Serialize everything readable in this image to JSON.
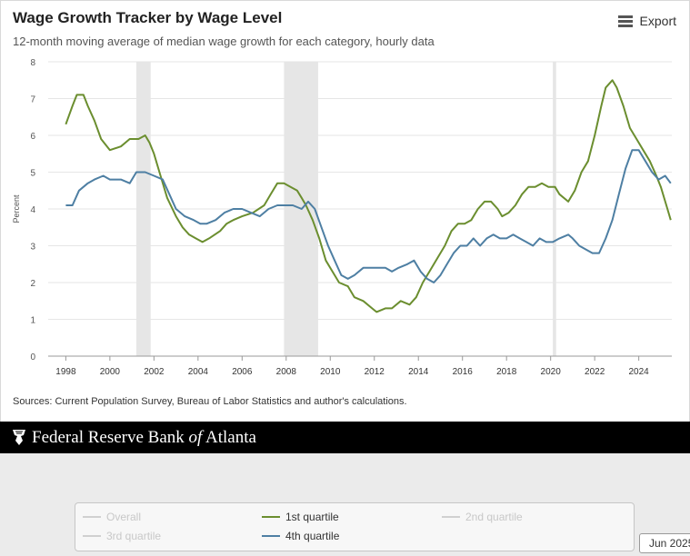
{
  "header": {
    "title": "Wage Growth Tracker by Wage Level",
    "subtitle": "12-month moving average of median wage growth for each category, hourly data",
    "export_label": "Export"
  },
  "sources": "Sources: Current Population Survey, Bureau of Labor Statistics and author's calculations.",
  "banner": {
    "pre": "Federal Reserve Bank ",
    "italic": "of",
    "post": " Atlanta"
  },
  "legend": [
    {
      "label": "Overall",
      "active": false
    },
    {
      "label": "1st quartile",
      "active": true,
      "color": "#6b8e2f"
    },
    {
      "label": "2nd quartile",
      "active": false
    },
    {
      "label": "3rd quartile",
      "active": false
    },
    {
      "label": "4th quartile",
      "active": true,
      "color": "#4e7fa3"
    }
  ],
  "tooltip": "Jun 2025",
  "chart_data": {
    "type": "line",
    "ylabel": "Percent",
    "ylim": [
      0,
      8
    ],
    "yticks": [
      0,
      1,
      2,
      3,
      4,
      5,
      6,
      7,
      8
    ],
    "xlim": [
      1997.2,
      2025.5
    ],
    "xticks": [
      "1998",
      "2000",
      "2002",
      "2004",
      "2006",
      "2008",
      "2010",
      "2012",
      "2014",
      "2016",
      "2018",
      "2020",
      "2022",
      "2024"
    ],
    "recessions": [
      [
        2001.2,
        2001.85
      ],
      [
        2007.9,
        2009.45
      ],
      [
        2020.1,
        2020.25
      ]
    ],
    "series": [
      {
        "name": "1st quartile",
        "color": "#6b8e2f",
        "x": [
          1998.0,
          1998.3,
          1998.5,
          1998.8,
          1999.0,
          1999.3,
          1999.6,
          2000.0,
          2000.5,
          2000.9,
          2001.3,
          2001.6,
          2001.8,
          2002.0,
          2002.3,
          2002.6,
          2003.0,
          2003.3,
          2003.6,
          2003.9,
          2004.2,
          2004.5,
          2005.0,
          2005.3,
          2005.6,
          2006.0,
          2006.5,
          2007.0,
          2007.3,
          2007.6,
          2007.9,
          2008.2,
          2008.5,
          2008.7,
          2008.9,
          2009.2,
          2009.5,
          2009.8,
          2010.1,
          2010.4,
          2010.8,
          2011.1,
          2011.5,
          2011.9,
          2012.1,
          2012.5,
          2012.8,
          2013.2,
          2013.6,
          2013.9,
          2014.2,
          2014.5,
          2014.8,
          2015.2,
          2015.5,
          2015.8,
          2016.1,
          2016.4,
          2016.7,
          2017.0,
          2017.3,
          2017.6,
          2017.8,
          2018.1,
          2018.4,
          2018.7,
          2019.0,
          2019.3,
          2019.6,
          2019.9,
          2020.2,
          2020.4,
          2020.8,
          2021.1,
          2021.4,
          2021.7,
          2022.0,
          2022.3,
          2022.5,
          2022.8,
          2023.0,
          2023.3,
          2023.6,
          2023.9,
          2024.2,
          2024.5,
          2024.8,
          2025.0,
          2025.3,
          2025.45
        ],
        "values": [
          6.3,
          6.8,
          7.1,
          7.1,
          6.8,
          6.4,
          5.9,
          5.6,
          5.7,
          5.9,
          5.9,
          6.0,
          5.8,
          5.5,
          4.9,
          4.3,
          3.8,
          3.5,
          3.3,
          3.2,
          3.1,
          3.2,
          3.4,
          3.6,
          3.7,
          3.8,
          3.9,
          4.1,
          4.4,
          4.7,
          4.7,
          4.6,
          4.5,
          4.3,
          4.1,
          3.7,
          3.2,
          2.6,
          2.3,
          2.0,
          1.9,
          1.6,
          1.5,
          1.3,
          1.2,
          1.3,
          1.3,
          1.5,
          1.4,
          1.6,
          2.0,
          2.3,
          2.6,
          3.0,
          3.4,
          3.6,
          3.6,
          3.7,
          4.0,
          4.2,
          4.2,
          4.0,
          3.8,
          3.9,
          4.1,
          4.4,
          4.6,
          4.6,
          4.7,
          4.6,
          4.6,
          4.4,
          4.2,
          4.5,
          5.0,
          5.3,
          6.0,
          6.8,
          7.3,
          7.5,
          7.3,
          6.8,
          6.2,
          5.9,
          5.6,
          5.3,
          4.9,
          4.6,
          4.0,
          3.7
        ]
      },
      {
        "name": "4th quartile",
        "color": "#4e7fa3",
        "x": [
          1998.0,
          1998.3,
          1998.6,
          1999.0,
          1999.3,
          1999.7,
          2000.0,
          2000.5,
          2000.9,
          2001.2,
          2001.6,
          2002.0,
          2002.4,
          2002.7,
          2003.0,
          2003.4,
          2003.8,
          2004.1,
          2004.4,
          2004.8,
          2005.2,
          2005.6,
          2006.0,
          2006.4,
          2006.8,
          2007.2,
          2007.6,
          2008.0,
          2008.3,
          2008.7,
          2009.0,
          2009.3,
          2009.6,
          2009.9,
          2010.2,
          2010.5,
          2010.8,
          2011.1,
          2011.5,
          2011.8,
          2012.1,
          2012.5,
          2012.8,
          2013.1,
          2013.5,
          2013.8,
          2014.1,
          2014.4,
          2014.7,
          2015.0,
          2015.3,
          2015.6,
          2015.9,
          2016.2,
          2016.5,
          2016.8,
          2017.1,
          2017.4,
          2017.7,
          2018.0,
          2018.3,
          2018.6,
          2018.9,
          2019.2,
          2019.5,
          2019.8,
          2020.1,
          2020.4,
          2020.8,
          2021.0,
          2021.3,
          2021.6,
          2021.9,
          2022.2,
          2022.5,
          2022.8,
          2023.1,
          2023.4,
          2023.7,
          2024.0,
          2024.3,
          2024.6,
          2024.9,
          2025.2,
          2025.45
        ],
        "values": [
          4.1,
          4.1,
          4.5,
          4.7,
          4.8,
          4.9,
          4.8,
          4.8,
          4.7,
          5.0,
          5.0,
          4.9,
          4.8,
          4.4,
          4.0,
          3.8,
          3.7,
          3.6,
          3.6,
          3.7,
          3.9,
          4.0,
          4.0,
          3.9,
          3.8,
          4.0,
          4.1,
          4.1,
          4.1,
          4.0,
          4.2,
          4.0,
          3.5,
          3.0,
          2.6,
          2.2,
          2.1,
          2.2,
          2.4,
          2.4,
          2.4,
          2.4,
          2.3,
          2.4,
          2.5,
          2.6,
          2.3,
          2.1,
          2.0,
          2.2,
          2.5,
          2.8,
          3.0,
          3.0,
          3.2,
          3.0,
          3.2,
          3.3,
          3.2,
          3.2,
          3.3,
          3.2,
          3.1,
          3.0,
          3.2,
          3.1,
          3.1,
          3.2,
          3.3,
          3.2,
          3.0,
          2.9,
          2.8,
          2.8,
          3.2,
          3.7,
          4.4,
          5.1,
          5.6,
          5.6,
          5.3,
          5.0,
          4.8,
          4.9,
          4.7
        ]
      }
    ]
  }
}
